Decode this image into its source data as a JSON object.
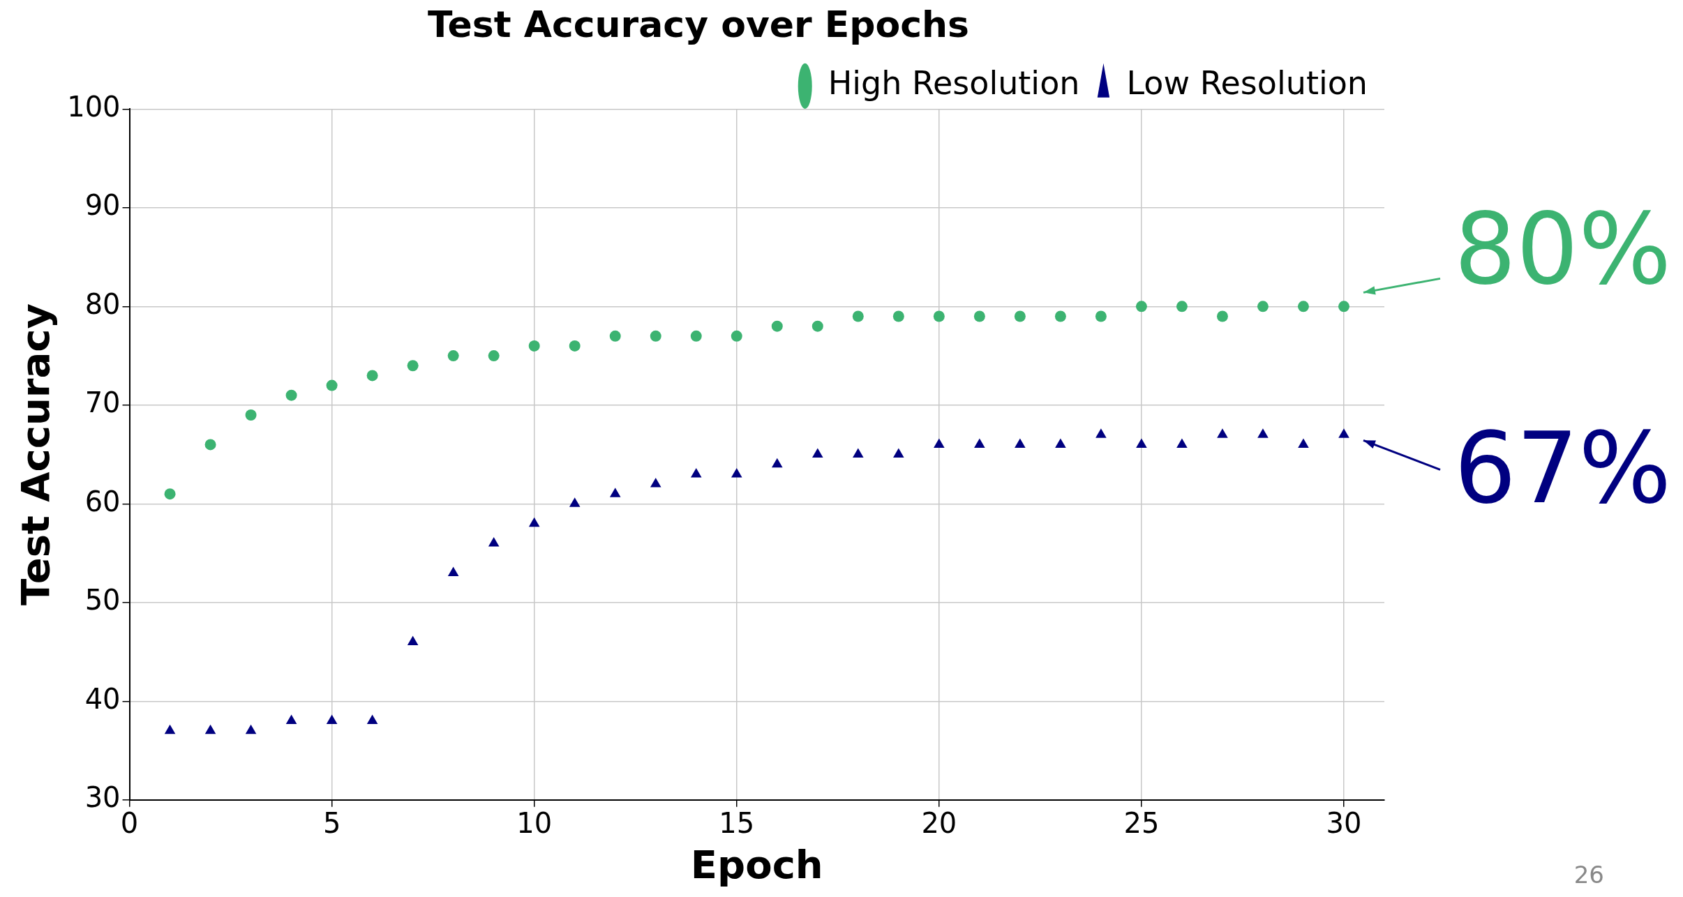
{
  "chart_data": {
    "type": "scatter",
    "title": "Test Accuracy over Epochs",
    "xlabel": "Epoch",
    "ylabel": "Test Accuracy",
    "x": [
      1,
      2,
      3,
      4,
      5,
      6,
      7,
      8,
      9,
      10,
      11,
      12,
      13,
      14,
      15,
      16,
      17,
      18,
      19,
      20,
      21,
      22,
      23,
      24,
      25,
      26,
      27,
      28,
      29,
      30
    ],
    "series": [
      {
        "name": "High Resolution",
        "color": "#3cb371",
        "marker": "circle",
        "values": [
          61,
          66,
          69,
          71,
          72,
          73,
          74,
          75,
          75,
          76,
          76,
          77,
          77,
          77,
          77,
          78,
          78,
          79,
          79,
          79,
          79,
          79,
          79,
          79,
          80,
          80,
          79,
          80,
          80,
          80
        ]
      },
      {
        "name": "Low Resolution",
        "color": "#000080",
        "marker": "triangle",
        "values": [
          37,
          37,
          37,
          38,
          38,
          38,
          46,
          53,
          56,
          58,
          60,
          61,
          62,
          63,
          63,
          64,
          65,
          65,
          65,
          66,
          66,
          66,
          66,
          67,
          66,
          66,
          67,
          67,
          66,
          67
        ]
      }
    ],
    "xlim": [
      0,
      31
    ],
    "xticks": [
      0,
      5,
      10,
      15,
      20,
      25,
      30
    ],
    "ylim": [
      30,
      100
    ],
    "yticks": [
      30,
      40,
      50,
      60,
      70,
      80,
      90,
      100
    ],
    "grid": true,
    "legend": "top right",
    "annotations": [
      {
        "text": "80%",
        "x": 30,
        "y": 80
      },
      {
        "text": "67%",
        "x": 30,
        "y": 67
      },
      "26"
    ]
  }
}
